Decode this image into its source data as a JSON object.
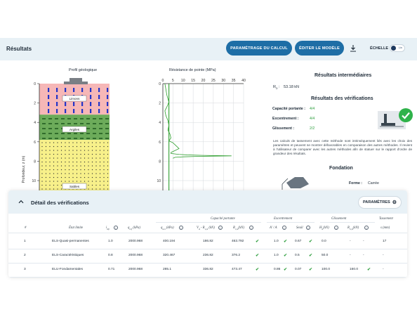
{
  "header": {
    "title": "Résultats",
    "btn_calc": "PARAMÉTRAGE DU CALCUL",
    "btn_model": "ÉDITER LE MODÈLE",
    "scale_label": "ÉCHELLE",
    "toggle_text": "Lin"
  },
  "geology": {
    "title": "Profil géologique",
    "yaxis_label": "Profondeur, z (m)",
    "ticks": [
      "0",
      "2",
      "4",
      "6",
      "8",
      "10"
    ],
    "layers": [
      {
        "name": "Limons",
        "top": 0,
        "bottom": 3.2,
        "color": "#f6b7b7"
      },
      {
        "name": "Argiles",
        "top": 3.2,
        "bottom": 5.8,
        "color": "#6cab5a"
      },
      {
        "name": "Sables",
        "top": 5.8,
        "bottom": 12,
        "color": "#f7f08a"
      }
    ]
  },
  "resistance": {
    "title": "Résistance de pointe (MPa)",
    "x_ticks": [
      "0",
      "5",
      "10",
      "15",
      "20",
      "25",
      "30",
      "35",
      "40"
    ],
    "y_ticks": [
      "0",
      "2",
      "4",
      "6",
      "8",
      "10"
    ]
  },
  "chart_data": {
    "type": "line",
    "title": "Résistance de pointe (MPa)",
    "xlim": [
      0,
      40
    ],
    "ylim": [
      0,
      12
    ],
    "grid": true,
    "series": [
      {
        "x": [
          1,
          1.5,
          2,
          3,
          2,
          1,
          1.5,
          2.5,
          3,
          2.5,
          3.5,
          4,
          3,
          5,
          6,
          7,
          8,
          6,
          5,
          4,
          4,
          8,
          12,
          20,
          34,
          18,
          10,
          6,
          5
        ],
        "y": [
          0,
          0.6,
          1.2,
          1.9,
          2.4,
          2.8,
          3.3,
          3.8,
          4.3,
          4.8,
          5.2,
          5.6,
          5.9,
          6.1,
          6.3,
          6.5,
          6.7,
          6.9,
          7.0,
          7.1,
          7.2,
          7.3,
          7.35,
          7.4,
          7.45,
          7.5,
          7.55,
          7.6,
          7.7
        ]
      },
      {
        "x": [
          3,
          3,
          3,
          3,
          3,
          3,
          3,
          3,
          3,
          3,
          3,
          3,
          3,
          3,
          3,
          3,
          3,
          3,
          3,
          3,
          3,
          3,
          3,
          3,
          3,
          3,
          3,
          3,
          3
        ],
        "y": [
          0,
          0.6,
          1.2,
          1.9,
          2.4,
          2.8,
          3.3,
          3.8,
          4.3,
          4.8,
          5.2,
          5.6,
          5.9,
          6.1,
          6.3,
          6.5,
          6.7,
          6.9,
          7.0,
          7.1,
          7.2,
          7.3,
          7.35,
          7.4,
          7.45,
          7.5,
          7.55,
          7.6,
          12
        ]
      }
    ]
  },
  "results": {
    "title": "Résultats intermédiaires",
    "rd_label": "R",
    "rd_sub": "D",
    "rd_colon": ":",
    "rd_value": "53.18 kN",
    "ver_title": "Résultats des vérifications",
    "checks": [
      {
        "label": "Capacité portante :",
        "value": "4/4"
      },
      {
        "label": "Excentrement :",
        "value": "4/4"
      },
      {
        "label": "Glissement :",
        "value": "2/2"
      }
    ],
    "note": "Les calculs de tassement avec cette méthode sont intrinsèquement liés avec les choix des paramètres et peuvent se montrer défavorables en comparaison des autres méthodes. Il revient à l'utilisateur de comparer avec les autres méthodes afin de statuer sur le rapport d'ordre de grandeur des résultats."
  },
  "fondation": {
    "title": "Fondation",
    "forme_label": "Forme :",
    "forme_value": "Carrée"
  },
  "details": {
    "title": "Détail des vérifications",
    "param_btn": "PARAMÈTRES",
    "groups": [
      "Capacité portante",
      "Excentrement",
      "Glissement",
      "Tassement"
    ],
    "columns": [
      "#",
      "État limite",
      "i",
      "δ",
      "q",
      "q",
      "V",
      "R",
      "A' / A",
      "Seuil",
      "H",
      "R",
      "s (mm)"
    ],
    "col_subs": [
      "",
      "",
      "δβ",
      "",
      "ref",
      "net",
      "d",
      "v;d",
      "",
      "",
      "d",
      "h;d",
      ""
    ],
    "col_units": [
      "",
      "",
      "",
      "",
      "(kPa)",
      "(kPa)",
      " - R",
      "(kN)",
      "",
      "",
      "(kN)",
      "(kN)",
      ""
    ],
    "col_extra": [
      "",
      "",
      "",
      "",
      "",
      "",
      "(kN)",
      "",
      "",
      "",
      "",
      "",
      ""
    ],
    "rows": [
      {
        "n": "1",
        "etat": "ELS-Quasi-permanentes",
        "i": "1.0",
        "q": "2000.968",
        "qn": "400.194",
        "vd": "186.82",
        "rvd": "463.792",
        "a": "1.0",
        "s": "0.67",
        "hd": "0.0",
        "rhd": "-",
        "rhd2": "-",
        "t": "17"
      },
      {
        "n": "2",
        "etat": "ELS-Caractéristiques",
        "i": "0.8",
        "q": "2000.968",
        "qn": "320.467",
        "vd": "236.82",
        "rvd": "376.2",
        "a": "1.0",
        "s": "0.5",
        "hd": "50.0",
        "rhd": "-",
        "rhd2": "-",
        "t": "-"
      },
      {
        "n": "3",
        "etat": "ELU-Fondamentales",
        "i": "0.71",
        "q": "2000.968",
        "qn": "285.1",
        "vd": "336.82",
        "rvd": "473.47",
        "a": "0.86",
        "s": "0.07",
        "hd": "100.0",
        "rhd": "160.0",
        "rhd2": "",
        "t": "-"
      }
    ]
  }
}
